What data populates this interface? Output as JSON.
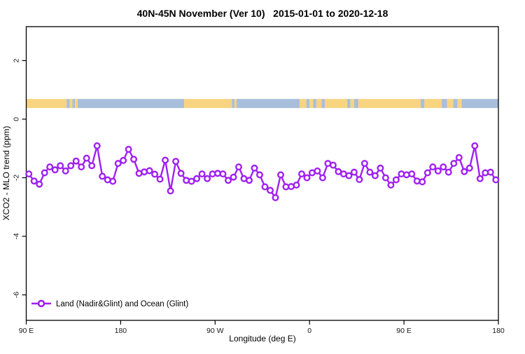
{
  "chart_data": {
    "type": "line",
    "title": "40N-45N November (Ver 10)   2015-01-01 to 2020-12-18",
    "xlabel": "Longitude (deg E)",
    "ylabel": "XCO2 - MLO trend (ppm)",
    "xlim": [
      90,
      540
    ],
    "ylim": [
      -6.87,
      3.16
    ],
    "x_axis_note": "x axis is longitude wrapping eastward: 90E -> 180 -> 90W -> 0 -> 90E -> 180",
    "grid": false,
    "legend_position": "bottom-left inside plot",
    "xticks": [
      {
        "v": 90,
        "label": "90 E"
      },
      {
        "v": 180,
        "label": "180"
      },
      {
        "v": 270,
        "label": "90 W"
      },
      {
        "v": 360,
        "label": "0"
      },
      {
        "v": 450,
        "label": "90 E"
      },
      {
        "v": 540,
        "label": "180"
      }
    ],
    "yticks": [
      {
        "v": 2,
        "label": "2"
      },
      {
        "v": 0,
        "label": "0"
      },
      {
        "v": -2,
        "label": "-2"
      },
      {
        "v": -4,
        "label": "-4"
      },
      {
        "v": -6,
        "label": "-6"
      }
    ],
    "series": [
      {
        "name": "Land (Nadir&Glint) and Ocean (Glint)",
        "color": "#A020F0",
        "marker": "open-circle",
        "x_start": 92.5,
        "x_step": 5,
        "values": [
          -1.87,
          -2.11,
          -2.22,
          -1.83,
          -1.63,
          -1.73,
          -1.59,
          -1.77,
          -1.59,
          -1.43,
          -1.63,
          -1.33,
          -1.59,
          -0.91,
          -1.95,
          -2.07,
          -2.12,
          -1.51,
          -1.41,
          -1.03,
          -1.37,
          -1.85,
          -1.8,
          -1.76,
          -1.88,
          -2.05,
          -1.4,
          -2.45,
          -1.44,
          -1.85,
          -2.09,
          -2.12,
          -2.03,
          -1.87,
          -2.03,
          -1.87,
          -1.85,
          -1.87,
          -2.09,
          -1.98,
          -1.63,
          -2.03,
          -2.09,
          -1.67,
          -1.9,
          -2.31,
          -2.43,
          -2.68,
          -1.9,
          -2.31,
          -2.3,
          -2.25,
          -1.87,
          -2.0,
          -1.83,
          -1.77,
          -2.0,
          -1.51,
          -1.57,
          -1.79,
          -1.87,
          -1.93,
          -1.81,
          -2.06,
          -1.51,
          -1.81,
          -1.93,
          -1.67,
          -2.0,
          -2.25,
          -2.07,
          -1.87,
          -1.9,
          -1.87,
          -2.11,
          -2.14,
          -1.83,
          -1.63,
          -1.77,
          -1.63,
          -1.81,
          -1.51,
          -1.31,
          -1.79,
          -1.67,
          -0.91,
          -2.03,
          -1.83,
          -1.81,
          -2.07
        ]
      }
    ],
    "band": {
      "description": "surface-type strip along latitude band: land=yellow, ocean=blue",
      "top_ppm": 0.69,
      "bottom_ppm": 0.38,
      "land_color": "#F8D480",
      "ocean_color": "#A9BEDA",
      "segments": [
        {
          "from": 90,
          "to": 128.5,
          "type": "land"
        },
        {
          "from": 128.5,
          "to": 131.5,
          "type": "ocean"
        },
        {
          "from": 131.5,
          "to": 134,
          "type": "land"
        },
        {
          "from": 134,
          "to": 136.5,
          "type": "ocean"
        },
        {
          "from": 136.5,
          "to": 139,
          "type": "land"
        },
        {
          "from": 139,
          "to": 240.5,
          "type": "ocean"
        },
        {
          "from": 240.5,
          "to": 286,
          "type": "land"
        },
        {
          "from": 286,
          "to": 288.5,
          "type": "ocean"
        },
        {
          "from": 288.5,
          "to": 290.5,
          "type": "land"
        },
        {
          "from": 290.5,
          "to": 350.5,
          "type": "ocean"
        },
        {
          "from": 350.5,
          "to": 357,
          "type": "land"
        },
        {
          "from": 357,
          "to": 360,
          "type": "ocean"
        },
        {
          "from": 360,
          "to": 363.5,
          "type": "land"
        },
        {
          "from": 363.5,
          "to": 366.5,
          "type": "ocean"
        },
        {
          "from": 366.5,
          "to": 371.5,
          "type": "land"
        },
        {
          "from": 371.5,
          "to": 374.5,
          "type": "ocean"
        },
        {
          "from": 374.5,
          "to": 396,
          "type": "land"
        },
        {
          "from": 396,
          "to": 399,
          "type": "ocean"
        },
        {
          "from": 399,
          "to": 402.5,
          "type": "land"
        },
        {
          "from": 402.5,
          "to": 406.5,
          "type": "ocean"
        },
        {
          "from": 406.5,
          "to": 466,
          "type": "land"
        },
        {
          "from": 466,
          "to": 469.5,
          "type": "ocean"
        },
        {
          "from": 469.5,
          "to": 486,
          "type": "land"
        },
        {
          "from": 486,
          "to": 491,
          "type": "ocean"
        },
        {
          "from": 491,
          "to": 497,
          "type": "land"
        },
        {
          "from": 497,
          "to": 501,
          "type": "ocean"
        },
        {
          "from": 501,
          "to": 505,
          "type": "land"
        },
        {
          "from": 505,
          "to": 540,
          "type": "ocean"
        }
      ]
    }
  }
}
